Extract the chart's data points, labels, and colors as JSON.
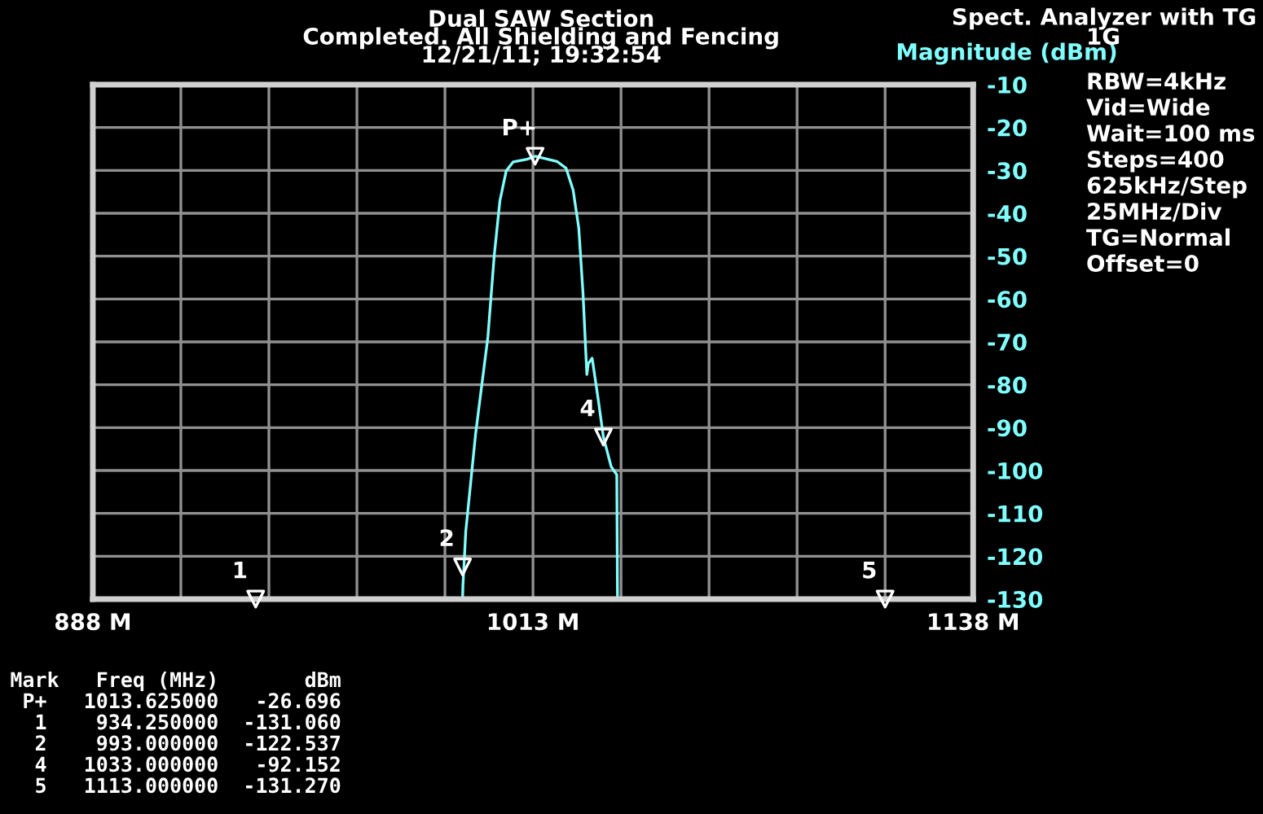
{
  "chart_data": {
    "type": "line",
    "title": "Dual SAW Section",
    "subtitle": "Completed. All Shielding and Fencing",
    "ylabel": "Magnitude (dBm)",
    "x": [
      993.0,
      993.1,
      993.9,
      996.7,
      1000.2,
      1002.0,
      1003.6,
      1005.4,
      1007.4,
      1011.3,
      1013.625,
      1019.8,
      1022.4,
      1024.4,
      1026.0,
      1027.2,
      1028.3,
      1028.7,
      1029.8,
      1031.4,
      1033.0,
      1035.2,
      1036.8,
      1037.0
    ],
    "series": [
      {
        "type": "scatter",
        "marker": "triangle",
        "color": "#ffffff",
        "x": [
          1013.6,
          934.25,
          993.0,
          1033.0,
          1113.0
        ],
        "values": [
          -26.7,
          -130,
          -122.5,
          -92.2,
          -130
        ]
      },
      {
        "color": "#80ffff",
        "values": [
          -130,
          -127,
          -114.3,
          -91.5,
          -68.8,
          -49.8,
          -37.1,
          -30.1,
          -28.0,
          -27.4,
          -26.7,
          -27.9,
          -29.5,
          -34.6,
          -43.4,
          -58.6,
          -77.6,
          -75.1,
          -73.8,
          -82.7,
          -92.2,
          -99.1,
          -101,
          -130
        ]
      }
    ],
    "xlim": [
      888,
      1138
    ],
    "ylim": [
      -130,
      -10
    ],
    "xticks": [
      {
        "value": 888,
        "label": "888 M"
      },
      {
        "value": 913,
        "label": null
      },
      {
        "value": 938,
        "label": null
      },
      {
        "value": 963,
        "label": null
      },
      {
        "value": 988,
        "label": null
      },
      {
        "value": 1013,
        "label": "1013 M"
      },
      {
        "value": 1038,
        "label": null
      },
      {
        "value": 1063,
        "label": null
      },
      {
        "value": 1088,
        "label": null
      },
      {
        "value": 1113,
        "label": null
      },
      {
        "value": 1138,
        "label": "1138 M"
      }
    ],
    "yticks": [
      -10,
      -20,
      -30,
      -40,
      -50,
      -60,
      -70,
      -80,
      -90,
      -100,
      -110,
      -120,
      -130
    ],
    "grid": true,
    "marker": "none",
    "line_style": "solid",
    "annotations": [
      {
        "text": "P+",
        "x": 1013.6,
        "y": -26.7
      },
      {
        "text": "1",
        "x": 934.25,
        "y": -130
      },
      {
        "text": "2",
        "x": 993.0,
        "y": -122.5
      },
      {
        "text": "4",
        "x": 1033.0,
        "y": -92.2
      },
      {
        "text": "5",
        "x": 1113.0,
        "y": -130
      },
      "12/21/11; 19:32:54",
      "Spect. Analyzer with TG",
      "1G",
      "RBW=4kHz",
      "Vid=Wide",
      "Wait=100 ms",
      "Steps=400",
      "625kHz/Step",
      "25MHz/Div",
      "TG=Normal",
      "Offset=0",
      "Mark   Freq (MHz)       dBm",
      " P+   1013.625000   -26.696",
      "  1    934.250000  -131.060",
      "  2    993.000000  -122.537",
      "  4   1033.000000   -92.152",
      "  5   1113.000000  -131.270"
    ]
  }
}
